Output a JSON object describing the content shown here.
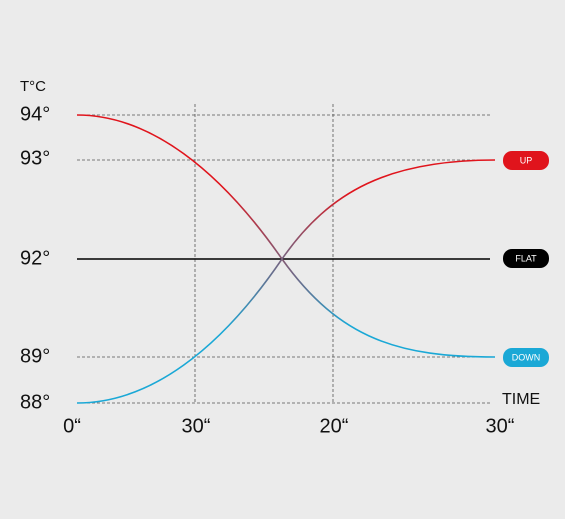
{
  "axis_title": "T°C",
  "y_labels": [
    "94°",
    "93°",
    "92°",
    "89°",
    "88°"
  ],
  "x_labels": [
    "0“",
    "30“",
    "20“",
    "30“"
  ],
  "x_title": "TIME",
  "badges": [
    "UP",
    "FLAT",
    "DOWN"
  ]
}
